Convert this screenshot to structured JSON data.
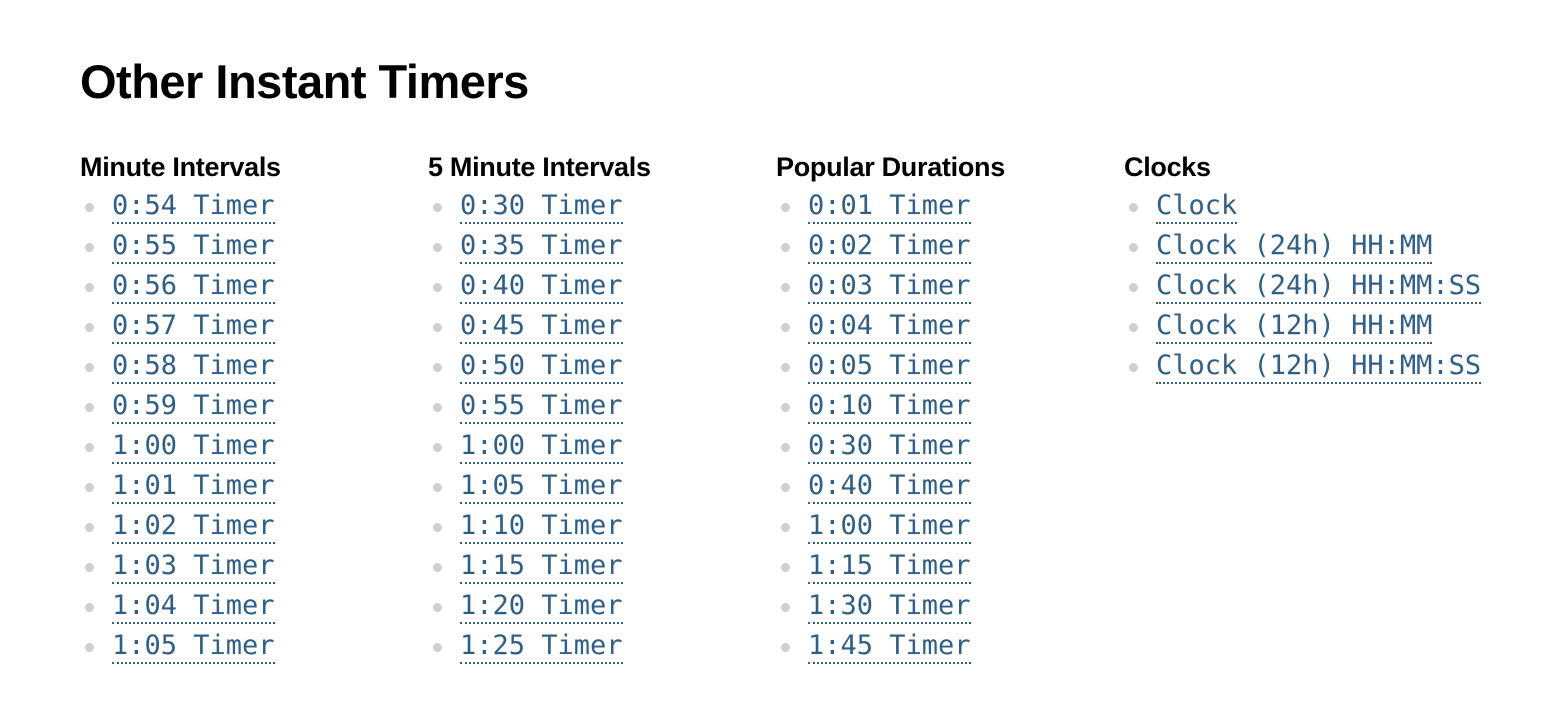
{
  "page": {
    "title": "Other Instant Timers"
  },
  "colors": {
    "link": "#2f5f86",
    "bullet": "#cfcfcf",
    "text": "#000000",
    "background": "#ffffff"
  },
  "sections": [
    {
      "heading": "Minute Intervals",
      "links": [
        "0:54 Timer",
        "0:55 Timer",
        "0:56 Timer",
        "0:57 Timer",
        "0:58 Timer",
        "0:59 Timer",
        "1:00 Timer",
        "1:01 Timer",
        "1:02 Timer",
        "1:03 Timer",
        "1:04 Timer",
        "1:05 Timer"
      ]
    },
    {
      "heading": "5 Minute Intervals",
      "links": [
        "0:30 Timer",
        "0:35 Timer",
        "0:40 Timer",
        "0:45 Timer",
        "0:50 Timer",
        "0:55 Timer",
        "1:00 Timer",
        "1:05 Timer",
        "1:10 Timer",
        "1:15 Timer",
        "1:20 Timer",
        "1:25 Timer"
      ]
    },
    {
      "heading": "Popular Durations",
      "links": [
        "0:01 Timer",
        "0:02 Timer",
        "0:03 Timer",
        "0:04 Timer",
        "0:05 Timer",
        "0:10 Timer",
        "0:30 Timer",
        "0:40 Timer",
        "1:00 Timer",
        "1:15 Timer",
        "1:30 Timer",
        "1:45 Timer"
      ]
    },
    {
      "heading": "Clocks",
      "links": [
        "Clock",
        "Clock (24h) HH:MM",
        "Clock (24h) HH:MM:SS",
        "Clock (12h) HH:MM",
        "Clock (12h) HH:MM:SS"
      ]
    }
  ]
}
